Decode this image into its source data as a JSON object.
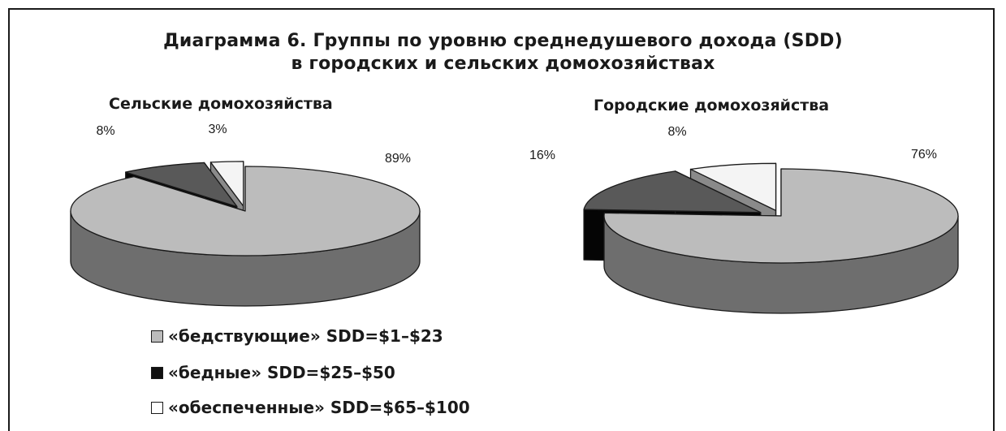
{
  "title_line1": "Диаграмма 6. Группы по уровню среднедушевого дохода (SDD)",
  "title_line2": "в городских и сельских домохозяйствах",
  "colors": {
    "distressed_top": "#bcbcbc",
    "distressed_side": "#6e6e6e",
    "poor_top": "#595959",
    "poor_side": "#050505",
    "wealthy_top": "#f4f4f4",
    "wealthy_side": "#8a8a8a",
    "outline": "#1a1a1a"
  },
  "legend": [
    {
      "label": "«бедствующие» SDD=$1–$23",
      "color": "#bcbcbc"
    },
    {
      "label": "«бедные» SDD=$25–$50",
      "color": "#111111"
    },
    {
      "label": "«обеспеченные» SDD=$65–$100",
      "color": "#ffffff"
    }
  ],
  "chart_data": [
    {
      "type": "pie",
      "title": "Сельские домохозяйства",
      "categories": [
        "«бедствующие» SDD=$1–$23",
        "«бедные» SDD=$25–$50",
        "«обеспеченные» SDD=$65–$100"
      ],
      "values": [
        89,
        8,
        3
      ],
      "labels": [
        "89%",
        "8%",
        "3%"
      ]
    },
    {
      "type": "pie",
      "title": "Городские домохозяйства",
      "categories": [
        "«бедствующие» SDD=$1–$23",
        "«бедные» SDD=$25–$50",
        "«обеспеченные» SDD=$65–$100"
      ],
      "values": [
        76,
        16,
        8
      ],
      "labels": [
        "76%",
        "16%",
        "8%"
      ]
    }
  ]
}
